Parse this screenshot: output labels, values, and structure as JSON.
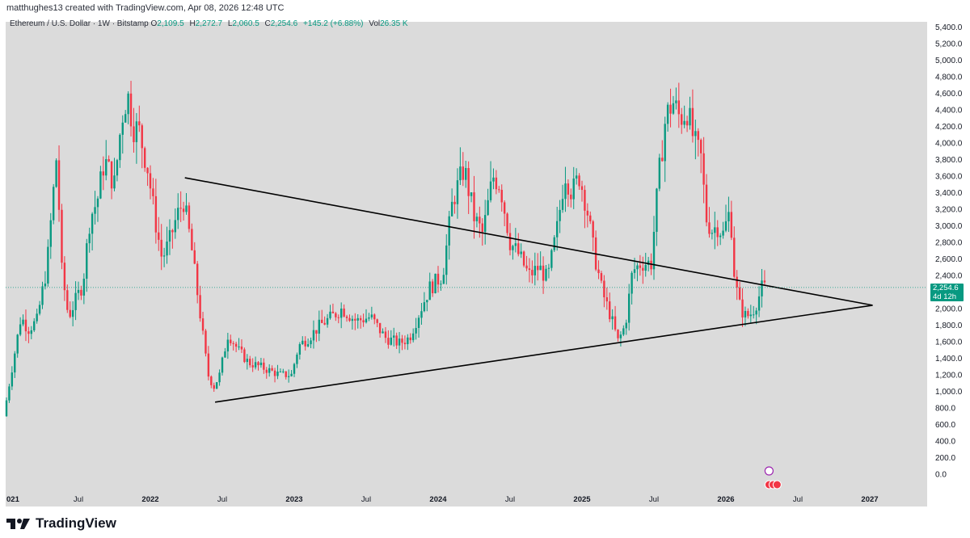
{
  "header": {
    "attribution": "matthughes13 created with TradingView.com, Apr 08, 2026 12:48 UTC"
  },
  "legend": {
    "symbol": "Ethereum / U.S. Dollar · 1W · Bitstamp",
    "open_label": "O",
    "open": "2,109.5",
    "high_label": "H",
    "high": "2,272.7",
    "low_label": "L",
    "low": "2,060.5",
    "close_label": "C",
    "close": "2,254.6",
    "change": "+145.2 (+6.88%)",
    "vol_label": "Vol",
    "vol": "26.35 K"
  },
  "price_badge": {
    "price": "2,254.6",
    "countdown": "4d 12h"
  },
  "brand": {
    "name": "TradingView"
  },
  "colors": {
    "up": "#089981",
    "down": "#f23645",
    "plot_bg": "#dbdbdb",
    "trendline": "#000000",
    "badge": "#089981"
  },
  "chart_data": {
    "type": "candlestick",
    "timeframe": "1W",
    "ylim": [
      0,
      5400
    ],
    "xlim": [
      2021.0,
      2027.2
    ],
    "y_ticks": [
      "5,400.0",
      "5,200.0",
      "5,000.0",
      "4,800.0",
      "4,600.0",
      "4,400.0",
      "4,200.0",
      "4,000.0",
      "3,800.0",
      "3,600.0",
      "3,400.0",
      "3,200.0",
      "3,000.0",
      "2,800.0",
      "2,600.0",
      "2,400.0",
      "2,200.0",
      "2,000.0",
      "1,800.0",
      "1,600.0",
      "1,400.0",
      "1,200.0",
      "1,000.0",
      "800.0",
      "600.0",
      "400.0",
      "200.0",
      "0.0"
    ],
    "x_ticks": [
      {
        "label": "021",
        "t": 2021.0
      },
      {
        "label": "Jul",
        "t": 2021.5
      },
      {
        "label": "2022",
        "t": 2022.0
      },
      {
        "label": "Jul",
        "t": 2022.5
      },
      {
        "label": "2023",
        "t": 2023.0
      },
      {
        "label": "Jul",
        "t": 2023.5
      },
      {
        "label": "2024",
        "t": 2024.0
      },
      {
        "label": "Jul",
        "t": 2024.5
      },
      {
        "label": "2025",
        "t": 2025.0
      },
      {
        "label": "Jul",
        "t": 2025.5
      },
      {
        "label": "2026",
        "t": 2026.0
      },
      {
        "label": "Jul",
        "t": 2026.5
      },
      {
        "label": "2027",
        "t": 2027.0
      }
    ],
    "current_price": 2254.6,
    "price_path": [
      [
        2021.0,
        700
      ],
      [
        2021.08,
        1500
      ],
      [
        2021.12,
        1900
      ],
      [
        2021.17,
        1750
      ],
      [
        2021.23,
        1850
      ],
      [
        2021.3,
        2500
      ],
      [
        2021.35,
        3500
      ],
      [
        2021.37,
        3900
      ],
      [
        2021.4,
        2500
      ],
      [
        2021.45,
        1900
      ],
      [
        2021.5,
        2100
      ],
      [
        2021.55,
        2300
      ],
      [
        2021.6,
        3100
      ],
      [
        2021.65,
        3300
      ],
      [
        2021.7,
        3800
      ],
      [
        2021.77,
        3500
      ],
      [
        2021.82,
        4300
      ],
      [
        2021.86,
        4600
      ],
      [
        2021.9,
        4200
      ],
      [
        2021.94,
        4150
      ],
      [
        2022.0,
        3700
      ],
      [
        2022.05,
        3100
      ],
      [
        2022.1,
        2600
      ],
      [
        2022.15,
        2800
      ],
      [
        2022.2,
        3100
      ],
      [
        2022.25,
        3300
      ],
      [
        2022.3,
        2800
      ],
      [
        2022.36,
        2000
      ],
      [
        2022.42,
        1200
      ],
      [
        2022.46,
        1050
      ],
      [
        2022.5,
        1200
      ],
      [
        2022.56,
        1700
      ],
      [
        2022.63,
        1500
      ],
      [
        2022.7,
        1350
      ],
      [
        2022.78,
        1300
      ],
      [
        2022.85,
        1250
      ],
      [
        2022.92,
        1200
      ],
      [
        2023.0,
        1200
      ],
      [
        2023.05,
        1550
      ],
      [
        2023.12,
        1650
      ],
      [
        2023.2,
        1800
      ],
      [
        2023.28,
        1900
      ],
      [
        2023.35,
        2000
      ],
      [
        2023.45,
        1850
      ],
      [
        2023.55,
        1900
      ],
      [
        2023.65,
        1650
      ],
      [
        2023.75,
        1580
      ],
      [
        2023.82,
        1650
      ],
      [
        2023.9,
        2000
      ],
      [
        2023.96,
        2250
      ],
      [
        2024.05,
        2400
      ],
      [
        2024.12,
        3300
      ],
      [
        2024.2,
        3700
      ],
      [
        2024.27,
        3100
      ],
      [
        2024.33,
        2900
      ],
      [
        2024.4,
        3600
      ],
      [
        2024.45,
        3500
      ],
      [
        2024.52,
        2800
      ],
      [
        2024.58,
        2650
      ],
      [
        2024.65,
        2400
      ],
      [
        2024.72,
        2500
      ],
      [
        2024.78,
        2350
      ],
      [
        2024.85,
        3000
      ],
      [
        2024.9,
        3650
      ],
      [
        2024.95,
        3400
      ],
      [
        2025.0,
        3600
      ],
      [
        2025.05,
        3250
      ],
      [
        2025.1,
        2700
      ],
      [
        2025.16,
        2200
      ],
      [
        2025.22,
        1900
      ],
      [
        2025.27,
        1600
      ],
      [
        2025.32,
        1800
      ],
      [
        2025.37,
        2450
      ],
      [
        2025.43,
        2550
      ],
      [
        2025.5,
        2550
      ],
      [
        2025.55,
        3550
      ],
      [
        2025.6,
        4300
      ],
      [
        2025.65,
        4500
      ],
      [
        2025.7,
        4300
      ],
      [
        2025.75,
        4400
      ],
      [
        2025.8,
        4000
      ],
      [
        2025.85,
        3800
      ],
      [
        2025.88,
        3100
      ],
      [
        2025.92,
        2950
      ],
      [
        2025.96,
        3000
      ],
      [
        2026.0,
        2900
      ],
      [
        2026.05,
        3200
      ],
      [
        2026.08,
        2350
      ],
      [
        2026.12,
        2000
      ],
      [
        2026.16,
        1900
      ],
      [
        2026.2,
        1950
      ],
      [
        2026.24,
        2100
      ],
      [
        2026.27,
        2254.6
      ]
    ],
    "trendlines": [
      {
        "name": "upper-trendline",
        "from": {
          "t": 2022.24,
          "price": 3580
        },
        "to": {
          "t": 2027.02,
          "price": 2040
        }
      },
      {
        "name": "lower-trendline",
        "from": {
          "t": 2022.45,
          "price": 870
        },
        "to": {
          "t": 2027.02,
          "price": 2040
        }
      }
    ],
    "xlabel": "",
    "ylabel": ""
  }
}
